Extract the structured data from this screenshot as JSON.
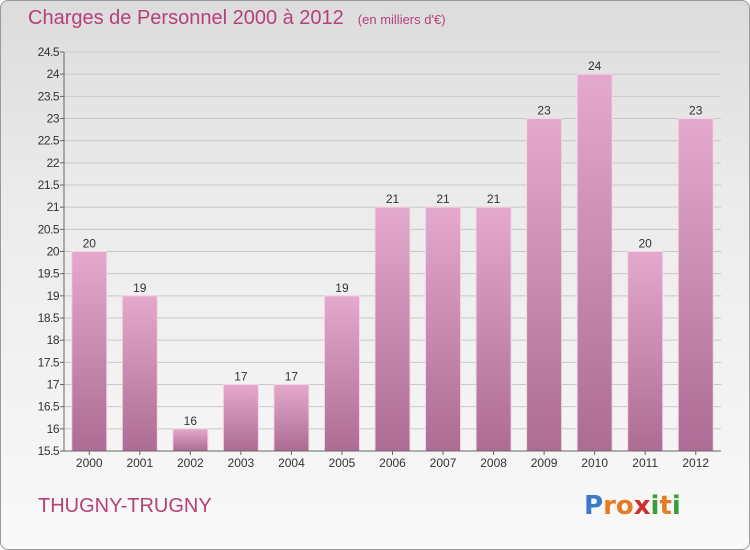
{
  "chart_data": {
    "type": "bar",
    "title": "Charges de Personnel 2000 à 2012",
    "subtitle": "(en milliers d'€)",
    "categories": [
      "2000",
      "2001",
      "2002",
      "2003",
      "2004",
      "2005",
      "2006",
      "2007",
      "2008",
      "2009",
      "2010",
      "2011",
      "2012"
    ],
    "values": [
      20,
      19,
      16,
      17,
      17,
      19,
      21,
      21,
      21,
      23,
      24,
      20,
      23
    ],
    "data_labels": [
      "20",
      "19",
      "16",
      "17",
      "17",
      "19",
      "21",
      "21",
      "21",
      "23",
      "24",
      "20",
      "23"
    ],
    "ylim": [
      15.5,
      24.5
    ],
    "yticks": [
      "15.5",
      "16",
      "16.5",
      "17",
      "17.5",
      "18",
      "18.5",
      "19",
      "19.5",
      "20",
      "20.5",
      "21",
      "21.5",
      "22",
      "22.5",
      "23",
      "23.5",
      "24",
      "24.5"
    ],
    "grid": true,
    "bar_color_top": "#e4a9cc",
    "bar_color_bottom": "#ad6c93"
  },
  "footer": {
    "commune": "THUGNY-TRUGNY",
    "logo_letters": [
      "P",
      "r",
      "o",
      "x",
      "i",
      "t",
      "i"
    ],
    "logo_colors": [
      "#3d79c7",
      "#e77b25",
      "#e77b25",
      "#d12e2e",
      "#3a9e3a",
      "#e77b25",
      "#3a9e3a"
    ]
  }
}
